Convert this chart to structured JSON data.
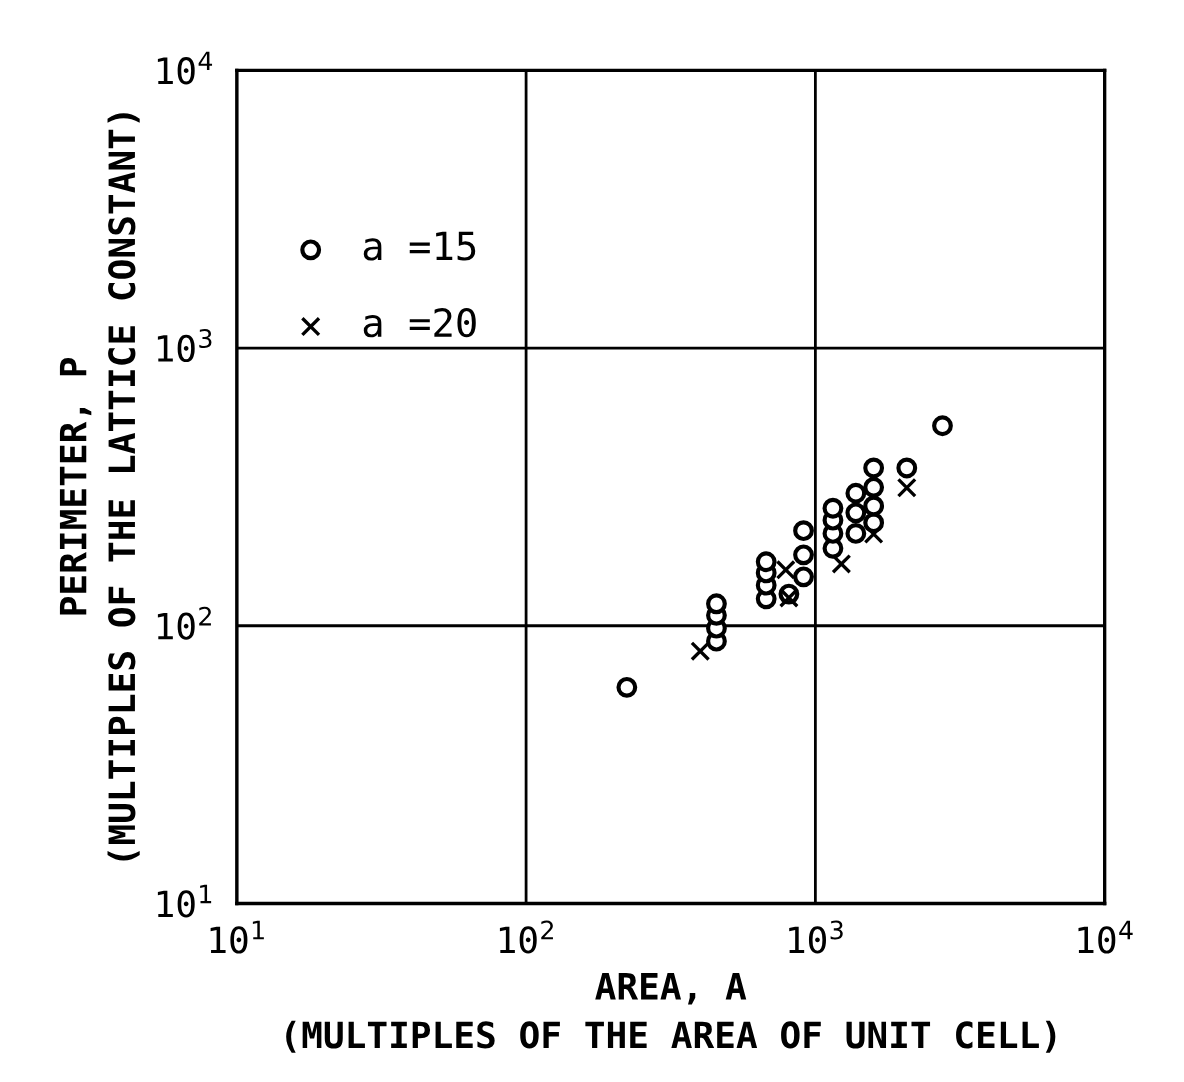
{
  "chart_data": {
    "type": "scatter",
    "xlabel": "AREA, A\n(MULTIPLES OF THE AREA OF UNIT CELL)",
    "ylabel": "PERIMETER, P\n(MULTIPLES OF THE LATTICE CONSTANT)",
    "log": "xy",
    "grid": true,
    "legend": "top left",
    "xlim": [
      10,
      10000
    ],
    "ylim": [
      10,
      10000
    ],
    "xticks": [
      {
        "value": 10,
        "label": "10$^{1}$"
      },
      {
        "value": 100,
        "label": "10$^{2}$"
      },
      {
        "value": 1000,
        "label": "10$^{3}$"
      },
      {
        "value": 10000,
        "label": "10$^{4}$"
      }
    ],
    "yticks": [
      {
        "value": 10,
        "label": "10$^{1}$"
      },
      {
        "value": 100,
        "label": "10$^{2}$"
      },
      {
        "value": 1000,
        "label": "10$^{3}$"
      },
      {
        "value": 10000,
        "label": "10$^{4}$"
      }
    ],
    "series": [
      {
        "name": "a =15",
        "color": "#000000",
        "marker": "circle",
        "x": [
          223,
          2750,
          2070,
          455,
          455,
          455,
          455,
          676,
          676,
          676,
          676,
          810,
          910,
          910,
          910,
          1150,
          1150,
          1150,
          1150,
          1380,
          1380,
          1380,
          1590,
          1590,
          1590,
          1590
        ],
        "values": [
          60,
          525,
          370,
          88,
          98,
          109,
          120,
          125,
          140,
          155,
          170,
          130,
          150,
          180,
          220,
          190,
          215,
          240,
          265,
          215,
          255,
          300,
          235,
          270,
          315,
          370
        ]
      },
      {
        "name": "a =20",
        "color": "#000000",
        "marker": "cross",
        "x": [
          400,
          790,
          810,
          1230,
          1590,
          2070
        ],
        "values": [
          81,
          159,
          126,
          167,
          214,
          314
        ]
      }
    ]
  }
}
